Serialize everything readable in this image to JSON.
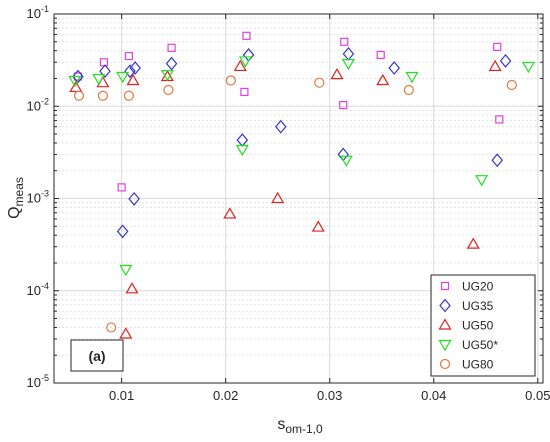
{
  "chart_data": {
    "type": "scatter",
    "xlabel": "s",
    "xlabel_sub": "om-1,0",
    "ylabel": "Q",
    "ylabel_sub": "meas",
    "xlim": [
      0.0035,
      0.0505
    ],
    "ylim": [
      1e-05,
      0.1
    ],
    "yscale": "log",
    "grid": true,
    "x_ticks": [
      0.01,
      0.02,
      0.03,
      0.04,
      0.05
    ],
    "x_tick_labels": [
      "0.01",
      "0.02",
      "0.03",
      "0.04",
      "0.05"
    ],
    "y_ticks": [
      1e-05,
      0.0001,
      0.001,
      0.01,
      0.1
    ],
    "y_tick_base": "10",
    "y_tick_exponents": [
      "-5",
      "-4",
      "-3",
      "-2",
      "-1"
    ],
    "legend_position": "bottom-right",
    "panel_label": "(a)",
    "series": [
      {
        "name": "UG20",
        "marker": "square",
        "color": "#e040e0",
        "points": [
          [
            0.0058,
            0.021
          ],
          [
            0.0083,
            0.03
          ],
          [
            0.01,
            0.00132
          ],
          [
            0.0107,
            0.035
          ],
          [
            0.0148,
            0.043
          ],
          [
            0.0218,
            0.0143
          ],
          [
            0.022,
            0.058
          ],
          [
            0.0313,
            0.0103
          ],
          [
            0.0314,
            0.05
          ],
          [
            0.0349,
            0.036
          ],
          [
            0.0461,
            0.044
          ],
          [
            0.0463,
            0.0072
          ]
        ]
      },
      {
        "name": "UG35",
        "marker": "diamond",
        "color": "#3636c8",
        "points": [
          [
            0.0058,
            0.021
          ],
          [
            0.0084,
            0.024
          ],
          [
            0.0101,
            0.00044
          ],
          [
            0.0108,
            0.024
          ],
          [
            0.0112,
            0.00099
          ],
          [
            0.0113,
            0.026
          ],
          [
            0.0148,
            0.029
          ],
          [
            0.0216,
            0.0043
          ],
          [
            0.0222,
            0.036
          ],
          [
            0.0253,
            0.006
          ],
          [
            0.0313,
            0.003
          ],
          [
            0.0318,
            0.037
          ],
          [
            0.0362,
            0.026
          ],
          [
            0.0461,
            0.0026
          ],
          [
            0.0469,
            0.031
          ]
        ]
      },
      {
        "name": "UG50",
        "marker": "triangle-up",
        "color": "#e02020",
        "points": [
          [
            0.0056,
            0.016
          ],
          [
            0.0082,
            0.018
          ],
          [
            0.0104,
            3.4e-05
          ],
          [
            0.011,
            0.000105
          ],
          [
            0.0111,
            0.019
          ],
          [
            0.0144,
            0.021
          ],
          [
            0.0204,
            0.00068
          ],
          [
            0.0214,
            0.027
          ],
          [
            0.025,
            0.001
          ],
          [
            0.0289,
            0.00049
          ],
          [
            0.0307,
            0.022
          ],
          [
            0.0351,
            0.019
          ],
          [
            0.0438,
            0.00032
          ],
          [
            0.0459,
            0.027
          ]
        ]
      },
      {
        "name": "UG50*",
        "marker": "triangle-down",
        "color": "#20e020",
        "points": [
          [
            0.0055,
            0.019
          ],
          [
            0.0078,
            0.02
          ],
          [
            0.0101,
            0.021
          ],
          [
            0.0104,
            0.00017
          ],
          [
            0.0144,
            0.022
          ],
          [
            0.0216,
            0.0034
          ],
          [
            0.0219,
            0.031
          ],
          [
            0.0316,
            0.0026
          ],
          [
            0.0318,
            0.029
          ],
          [
            0.0379,
            0.021
          ],
          [
            0.0446,
            0.0016
          ],
          [
            0.0491,
            0.027
          ]
        ]
      },
      {
        "name": "UG80",
        "marker": "circle",
        "color": "#e07a40",
        "points": [
          [
            0.0059,
            0.013
          ],
          [
            0.0082,
            0.013
          ],
          [
            0.009,
            4e-05
          ],
          [
            0.0107,
            0.013
          ],
          [
            0.0145,
            0.015
          ],
          [
            0.0205,
            0.019
          ],
          [
            0.029,
            0.018
          ],
          [
            0.0376,
            0.015
          ],
          [
            0.0475,
            0.017
          ]
        ]
      }
    ]
  }
}
